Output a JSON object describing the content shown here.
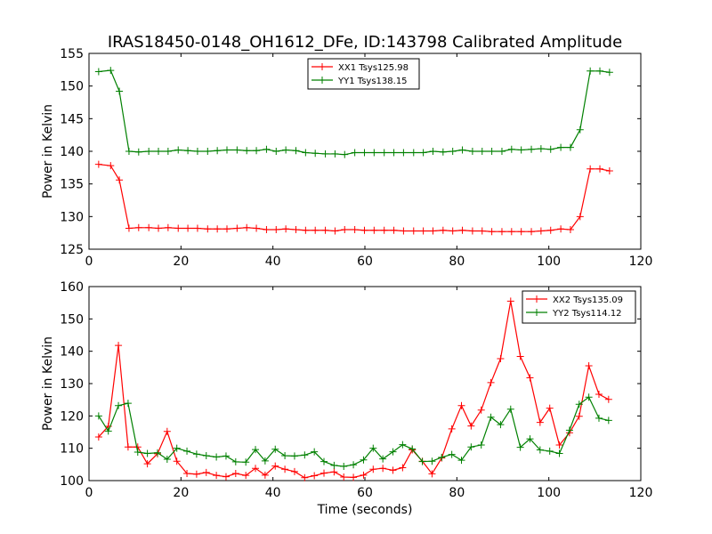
{
  "title": "IRAS18450-0148_OH1612_DFe, ID:143798 Calibrated Amplitude",
  "chart_data": [
    {
      "type": "line",
      "title": "IRAS18450-0148_OH1612_DFe, ID:143798 Calibrated Amplitude",
      "xlabel": "",
      "ylabel": "Power in Kelvin",
      "xlim": [
        0,
        120
      ],
      "ylim": [
        125,
        155
      ],
      "xticks": [
        0,
        20,
        40,
        60,
        80,
        100,
        120
      ],
      "yticks": [
        125,
        130,
        135,
        140,
        145,
        150,
        155
      ],
      "grid": false,
      "legend_position": "top-center",
      "x": [
        2.1,
        4.7,
        6.6,
        8.7,
        10.8,
        13.0,
        15.1,
        17.2,
        19.4,
        21.5,
        23.6,
        25.8,
        27.9,
        30.0,
        32.2,
        34.3,
        36.4,
        38.6,
        40.7,
        42.8,
        45.0,
        47.1,
        49.2,
        51.4,
        53.5,
        55.6,
        57.8,
        59.9,
        62.0,
        64.2,
        66.3,
        68.4,
        70.6,
        72.7,
        74.8,
        77.0,
        79.1,
        81.2,
        83.4,
        85.5,
        87.6,
        89.8,
        91.9,
        94.0,
        96.2,
        98.3,
        100.4,
        102.6,
        104.7,
        106.8,
        109.0,
        111.1,
        113.2
      ],
      "series": [
        {
          "name": "XX1 Tsys125.98",
          "color": "#ff0000",
          "values": [
            138.0,
            137.8,
            135.6,
            128.2,
            128.3,
            128.3,
            128.2,
            128.3,
            128.2,
            128.2,
            128.2,
            128.1,
            128.1,
            128.1,
            128.2,
            128.3,
            128.2,
            128.0,
            128.0,
            128.1,
            128.0,
            127.9,
            127.9,
            127.9,
            127.8,
            128.0,
            128.0,
            127.9,
            127.9,
            127.9,
            127.9,
            127.8,
            127.8,
            127.8,
            127.8,
            127.9,
            127.8,
            127.9,
            127.8,
            127.8,
            127.7,
            127.7,
            127.7,
            127.7,
            127.7,
            127.8,
            127.9,
            128.1,
            128.0,
            130.0,
            137.3,
            137.3,
            137.0
          ]
        },
        {
          "name": "YY1 Tsys138.15",
          "color": "#008000",
          "values": [
            152.2,
            152.4,
            149.2,
            140.0,
            139.9,
            140.0,
            140.0,
            140.0,
            140.2,
            140.1,
            140.0,
            140.0,
            140.1,
            140.2,
            140.2,
            140.1,
            140.1,
            140.3,
            140.0,
            140.2,
            140.1,
            139.8,
            139.7,
            139.6,
            139.6,
            139.5,
            139.8,
            139.8,
            139.8,
            139.8,
            139.8,
            139.8,
            139.8,
            139.8,
            140.0,
            139.9,
            140.0,
            140.2,
            140.0,
            140.0,
            140.0,
            140.0,
            140.3,
            140.2,
            140.3,
            140.4,
            140.3,
            140.6,
            140.6,
            143.3,
            152.3,
            152.3,
            152.1
          ]
        }
      ]
    },
    {
      "type": "line",
      "title": "",
      "xlabel": "Time (seconds)",
      "ylabel": "Power in Kelvin",
      "xlim": [
        0,
        120
      ],
      "ylim": [
        100,
        160
      ],
      "xticks": [
        0,
        20,
        40,
        60,
        80,
        100,
        120
      ],
      "yticks": [
        100,
        110,
        120,
        130,
        140,
        150,
        160
      ],
      "grid": false,
      "legend_position": "top-right",
      "x": [
        2.1,
        4.2,
        6.4,
        8.5,
        10.6,
        12.7,
        14.9,
        17.0,
        19.1,
        21.3,
        23.4,
        25.5,
        27.7,
        29.8,
        31.9,
        34.1,
        36.2,
        38.3,
        40.5,
        42.6,
        44.7,
        46.9,
        49.0,
        51.1,
        53.3,
        55.4,
        57.5,
        59.7,
        61.8,
        63.9,
        66.1,
        68.2,
        70.3,
        72.5,
        74.6,
        76.7,
        78.9,
        81.0,
        83.1,
        85.3,
        87.4,
        89.5,
        91.7,
        93.8,
        95.9,
        98.1,
        100.2,
        102.3,
        104.5,
        106.6,
        108.7,
        110.9,
        113.0
      ],
      "series": [
        {
          "name": "XX2 Tsys135.09",
          "color": "#ff0000",
          "values": [
            113.5,
            116.8,
            141.8,
            110.4,
            110.4,
            105.2,
            108.3,
            115.2,
            106.0,
            102.2,
            102.0,
            102.5,
            101.6,
            101.2,
            102.2,
            101.6,
            103.8,
            101.7,
            104.5,
            103.5,
            102.8,
            100.9,
            101.5,
            102.3,
            102.7,
            101.1,
            101.0,
            101.7,
            103.5,
            103.8,
            103.2,
            104.0,
            109.5,
            106.0,
            102.1,
            107.0,
            116.0,
            123.2,
            116.9,
            121.8,
            130.3,
            137.7,
            155.5,
            138.4,
            131.8,
            118.0,
            122.4,
            111.0,
            114.8,
            119.9,
            135.5,
            126.7,
            125.1
          ]
        },
        {
          "name": "YY2 Tsys114.12",
          "color": "#008000",
          "values": [
            120.0,
            115.3,
            123.2,
            123.9,
            108.8,
            108.4,
            108.6,
            106.6,
            110.0,
            109.1,
            108.2,
            107.7,
            107.3,
            107.6,
            105.8,
            105.7,
            109.6,
            106.1,
            109.7,
            107.7,
            107.6,
            107.9,
            108.9,
            105.9,
            104.7,
            104.4,
            104.9,
            106.4,
            110.0,
            106.7,
            108.9,
            111.1,
            109.8,
            105.9,
            106.0,
            107.2,
            108.1,
            106.3,
            110.4,
            111.0,
            119.6,
            117.3,
            122.1,
            110.3,
            112.9,
            109.5,
            109.1,
            108.4,
            115.6,
            123.6,
            125.8,
            119.3,
            118.6
          ]
        }
      ]
    }
  ]
}
